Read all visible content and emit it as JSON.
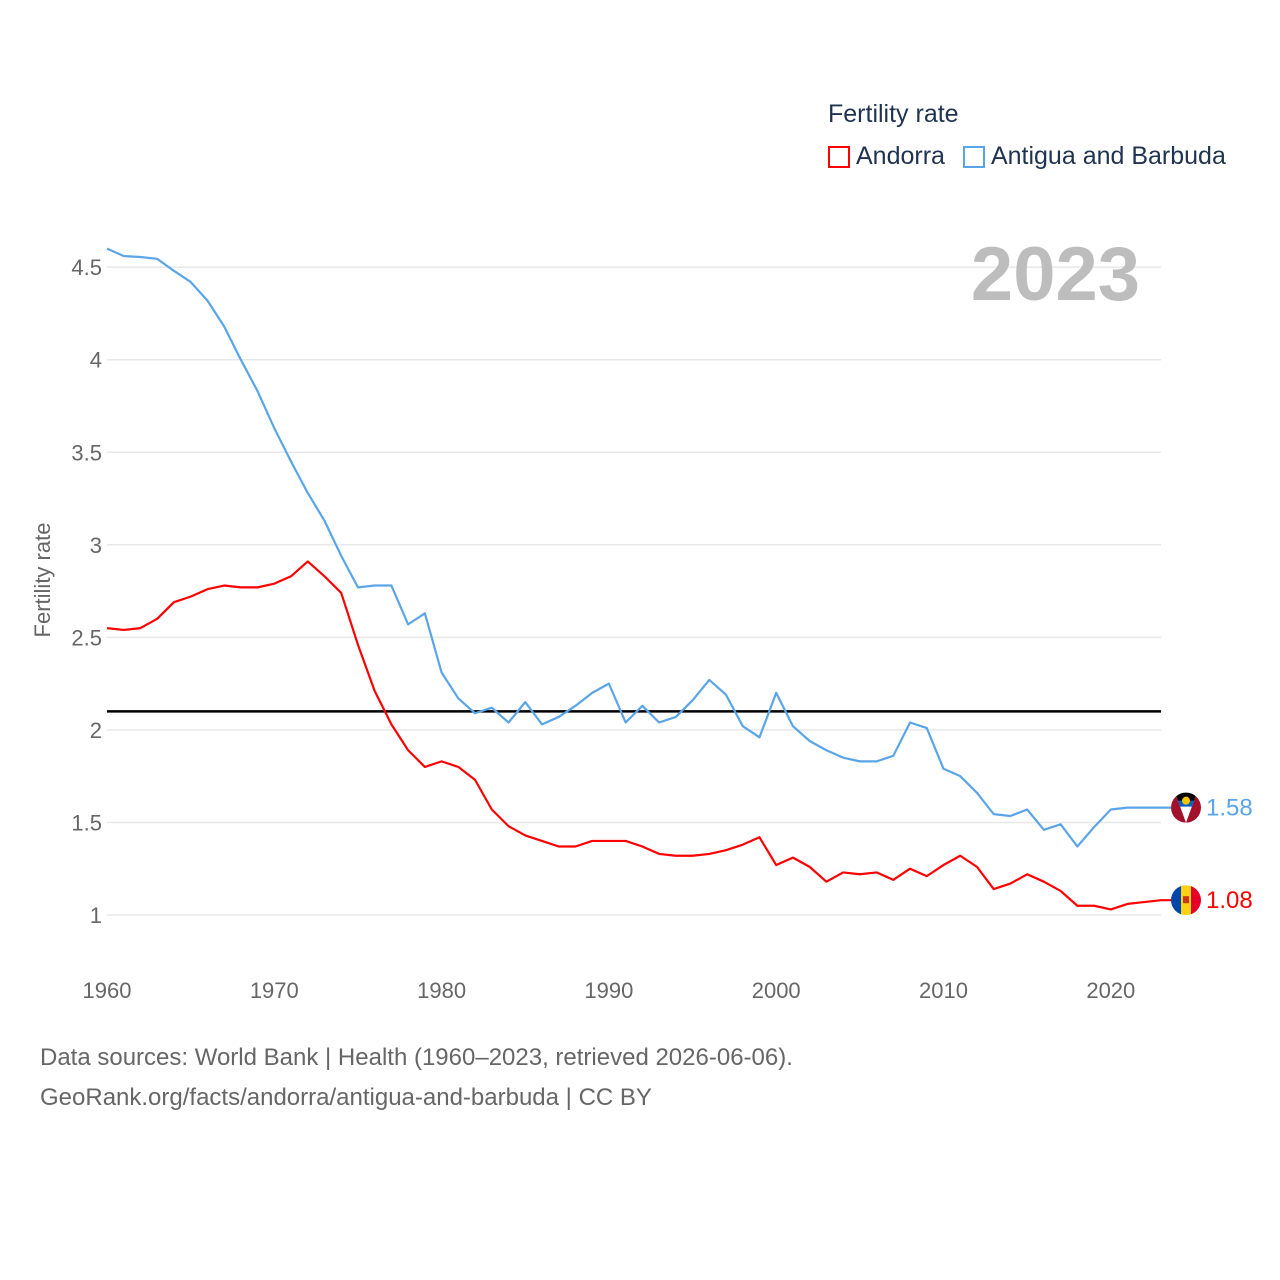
{
  "chart_data": {
    "type": "line",
    "title": "Fertility rate",
    "ylabel": "Fertility rate",
    "xlabel": "",
    "year_label": "2023",
    "xlim": [
      1960,
      2023
    ],
    "ylim": [
      0.75,
      4.7
    ],
    "x_ticks": [
      "1960",
      "1970",
      "1980",
      "1990",
      "2000",
      "2010",
      "2020"
    ],
    "y_ticks": [
      "1",
      "1.5",
      "2",
      "2.5",
      "3",
      "3.5",
      "4",
      "4.5"
    ],
    "grid": true,
    "legend_placement": "top-right",
    "reference_line": 2.1,
    "x": [
      1960,
      1961,
      1962,
      1963,
      1964,
      1965,
      1966,
      1967,
      1968,
      1969,
      1970,
      1971,
      1972,
      1973,
      1974,
      1975,
      1976,
      1977,
      1978,
      1979,
      1980,
      1981,
      1982,
      1983,
      1984,
      1985,
      1986,
      1987,
      1988,
      1989,
      1990,
      1991,
      1992,
      1993,
      1994,
      1995,
      1996,
      1997,
      1998,
      1999,
      2000,
      2001,
      2002,
      2003,
      2004,
      2005,
      2006,
      2007,
      2008,
      2009,
      2010,
      2011,
      2012,
      2013,
      2014,
      2015,
      2016,
      2017,
      2018,
      2019,
      2020,
      2021,
      2022,
      2023
    ],
    "series": [
      {
        "name": "Andorra",
        "color": "#ff0000",
        "end_label": "1.08",
        "values": [
          2.55,
          2.54,
          2.55,
          2.6,
          2.69,
          2.72,
          2.76,
          2.78,
          2.77,
          2.77,
          2.79,
          2.83,
          2.91,
          2.83,
          2.74,
          2.46,
          2.21,
          2.03,
          1.89,
          1.8,
          1.83,
          1.8,
          1.73,
          1.57,
          1.48,
          1.43,
          1.4,
          1.37,
          1.37,
          1.4,
          1.4,
          1.4,
          1.37,
          1.33,
          1.32,
          1.32,
          1.33,
          1.35,
          1.38,
          1.42,
          1.27,
          1.31,
          1.26,
          1.18,
          1.23,
          1.22,
          1.23,
          1.19,
          1.25,
          1.21,
          1.27,
          1.32,
          1.26,
          1.14,
          1.17,
          1.22,
          1.18,
          1.13,
          1.05,
          1.05,
          1.03,
          1.06,
          1.07,
          1.08
        ]
      },
      {
        "name": "Antigua and Barbuda",
        "color": "#5aa5e8",
        "end_label": "1.58",
        "values": [
          4.6,
          4.56,
          4.555,
          4.545,
          4.48,
          4.42,
          4.32,
          4.18,
          4.0,
          3.83,
          3.63,
          3.45,
          3.28,
          3.13,
          2.94,
          2.77,
          2.78,
          2.78,
          2.57,
          2.63,
          2.31,
          2.17,
          2.09,
          2.12,
          2.04,
          2.15,
          2.03,
          2.07,
          2.13,
          2.2,
          2.25,
          2.04,
          2.13,
          2.04,
          2.07,
          2.16,
          2.27,
          2.19,
          2.02,
          1.96,
          2.2,
          2.02,
          1.94,
          1.89,
          1.85,
          1.83,
          1.83,
          1.86,
          2.04,
          2.01,
          1.79,
          1.75,
          1.66,
          1.545,
          1.535,
          1.57,
          1.46,
          1.49,
          1.37,
          1.475,
          1.57,
          1.58,
          1.58,
          1.58
        ]
      }
    ]
  },
  "footer": {
    "line1": "Data sources: World Bank | Health (1960–2023, retrieved 2026-06-06).",
    "line2": "GeoRank.org/facts/andorra/antigua-and-barbuda | CC BY"
  }
}
